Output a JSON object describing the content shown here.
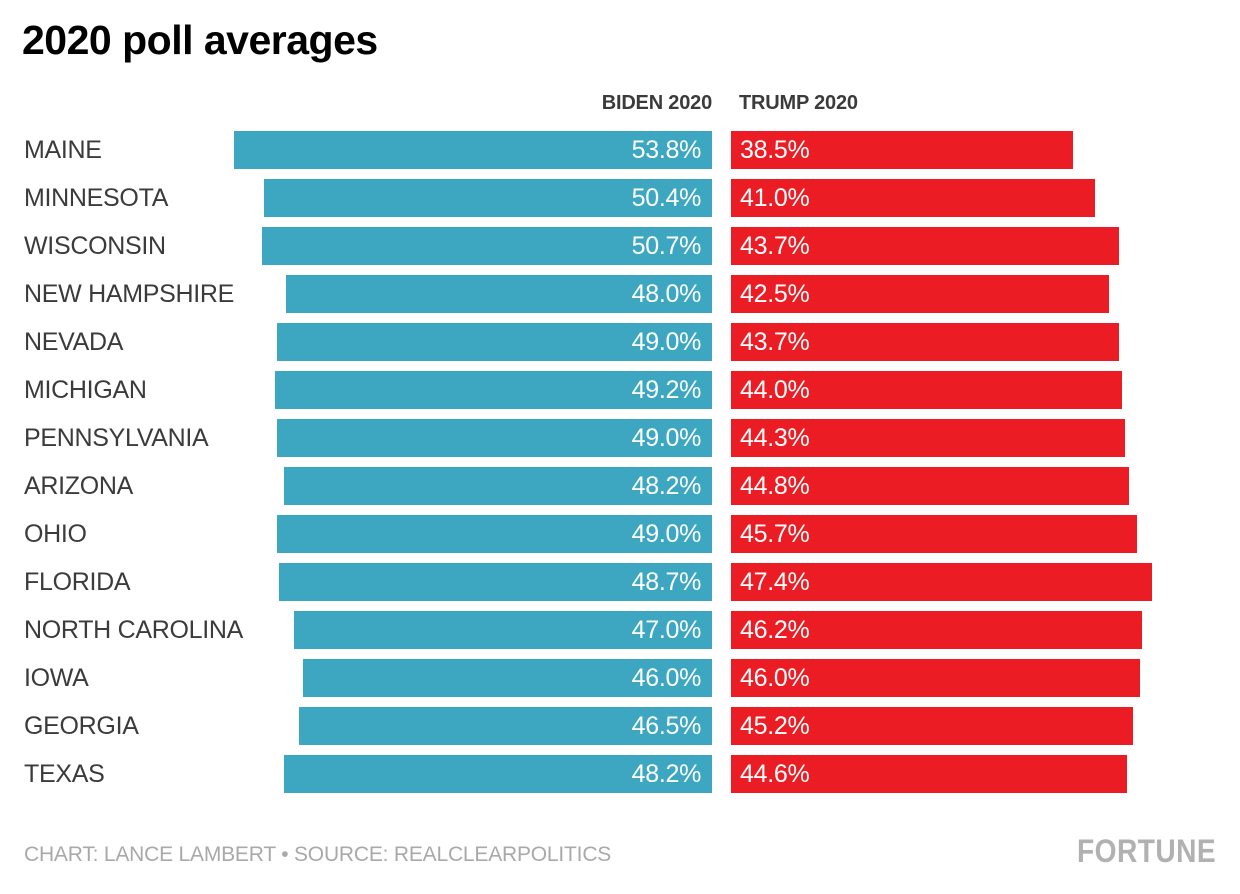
{
  "title": "2020 poll averages",
  "chart_data": {
    "type": "bar",
    "orientation": "horizontal-paired",
    "title": "2020 poll averages",
    "categories": [
      "MAINE",
      "MINNESOTA",
      "WISCONSIN",
      "NEW HAMPSHIRE",
      "NEVADA",
      "MICHIGAN",
      "PENNSYLVANIA",
      "ARIZONA",
      "OHIO",
      "FLORIDA",
      "NORTH CAROLINA",
      "IOWA",
      "GEORGIA",
      "TEXAS"
    ],
    "series": [
      {
        "name": "BIDEN 2020",
        "color": "#3da7c2",
        "values": [
          53.8,
          50.4,
          50.7,
          48.0,
          49.0,
          49.2,
          49.0,
          48.2,
          49.0,
          48.7,
          47.0,
          46.0,
          46.5,
          48.2
        ]
      },
      {
        "name": "TRUMP 2020",
        "color": "#ec1c24",
        "values": [
          38.5,
          41.0,
          43.7,
          42.5,
          43.7,
          44.0,
          44.3,
          44.8,
          45.7,
          47.4,
          46.2,
          46.0,
          45.2,
          44.6
        ]
      }
    ],
    "value_suffix": "%",
    "value_decimals": 1,
    "xlim": [
      0,
      100
    ],
    "grid": false,
    "legend_position": "top"
  },
  "footer": {
    "credit": "CHART: LANCE LAMBERT • SOURCE: REALCLEARPOLITICS",
    "brand": "FORTUNE"
  }
}
